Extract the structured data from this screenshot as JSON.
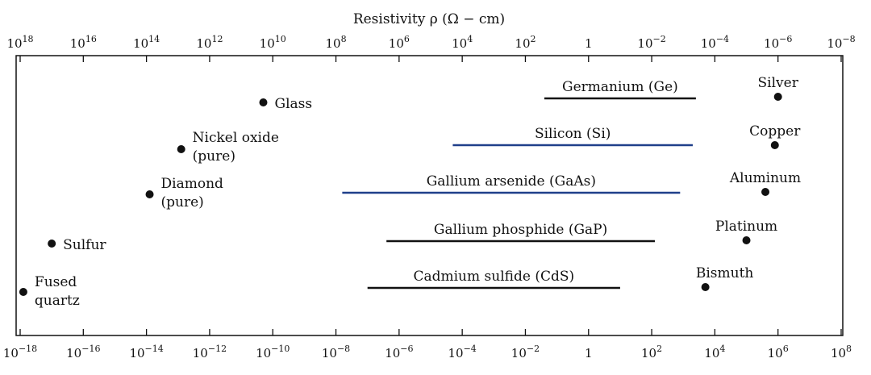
{
  "chart_data": {
    "type": "scatter",
    "title": "",
    "top_axis_label": "Resistivity ρ (Ω − cm)",
    "top_ticks": [
      {
        "exp": 18,
        "base": "10",
        "sup": "18"
      },
      {
        "exp": 16,
        "base": "10",
        "sup": "16"
      },
      {
        "exp": 14,
        "base": "10",
        "sup": "14"
      },
      {
        "exp": 12,
        "base": "10",
        "sup": "12"
      },
      {
        "exp": 10,
        "base": "10",
        "sup": "10"
      },
      {
        "exp": 8,
        "base": "10",
        "sup": "8"
      },
      {
        "exp": 6,
        "base": "10",
        "sup": "6"
      },
      {
        "exp": 4,
        "base": "10",
        "sup": "4"
      },
      {
        "exp": 2,
        "base": "10",
        "sup": "2"
      },
      {
        "exp": 0,
        "base": "1",
        "sup": ""
      },
      {
        "exp": -2,
        "base": "10",
        "sup": "−2"
      },
      {
        "exp": -4,
        "base": "10",
        "sup": "−4"
      },
      {
        "exp": -6,
        "base": "10",
        "sup": "−6"
      },
      {
        "exp": -8,
        "base": "10",
        "sup": "−8"
      }
    ],
    "bottom_ticks": [
      {
        "exp": -18,
        "base": "10",
        "sup": "−18"
      },
      {
        "exp": -16,
        "base": "10",
        "sup": "−16"
      },
      {
        "exp": -14,
        "base": "10",
        "sup": "−14"
      },
      {
        "exp": -12,
        "base": "10",
        "sup": "−12"
      },
      {
        "exp": -10,
        "base": "10",
        "sup": "−10"
      },
      {
        "exp": -8,
        "base": "10",
        "sup": "−8"
      },
      {
        "exp": -6,
        "base": "10",
        "sup": "−6"
      },
      {
        "exp": -4,
        "base": "10",
        "sup": "−4"
      },
      {
        "exp": -2,
        "base": "10",
        "sup": "−2"
      },
      {
        "exp": 0,
        "base": "1",
        "sup": ""
      },
      {
        "exp": 2,
        "base": "10",
        "sup": "2"
      },
      {
        "exp": 4,
        "base": "10",
        "sup": "4"
      },
      {
        "exp": 6,
        "base": "10",
        "sup": "6"
      },
      {
        "exp": 8,
        "base": "10",
        "sup": "8"
      }
    ],
    "conductivity_range_log10": [
      -18,
      8
    ],
    "log_scale": true,
    "grid": false,
    "point_materials": [
      {
        "name": "Glass",
        "log10_conductivity": -10.3
      },
      {
        "name": "Nickel oxide (pure)",
        "log10_conductivity": -12.9
      },
      {
        "name": "Diamond (pure)",
        "log10_conductivity": -13.9
      },
      {
        "name": "Sulfur",
        "log10_conductivity": -17.0
      },
      {
        "name": "Fused quartz",
        "log10_conductivity": -17.9
      },
      {
        "name": "Silver",
        "log10_conductivity": 6.0
      },
      {
        "name": "Copper",
        "log10_conductivity": 5.9
      },
      {
        "name": "Aluminum",
        "log10_conductivity": 5.6
      },
      {
        "name": "Platinum",
        "log10_conductivity": 5.0
      },
      {
        "name": "Bismuth",
        "log10_conductivity": 3.7
      }
    ],
    "range_materials": [
      {
        "name": "Germanium (Ge)",
        "log10_min": -1.4,
        "log10_max": 3.4,
        "color": "#111111"
      },
      {
        "name": "Silicon (Si)",
        "log10_min": -4.3,
        "log10_max": 3.3,
        "color": "#1f3f8a"
      },
      {
        "name": "Gallium arsenide (GaAs)",
        "log10_min": -7.8,
        "log10_max": 2.9,
        "color": "#1f3f8a"
      },
      {
        "name": "Gallium phosphide (GaP)",
        "log10_min": -6.4,
        "log10_max": 2.1,
        "color": "#111111"
      },
      {
        "name": "Cadmium sulfide (CdS)",
        "log10_min": -7.0,
        "log10_max": 1.0,
        "color": "#111111"
      }
    ]
  }
}
